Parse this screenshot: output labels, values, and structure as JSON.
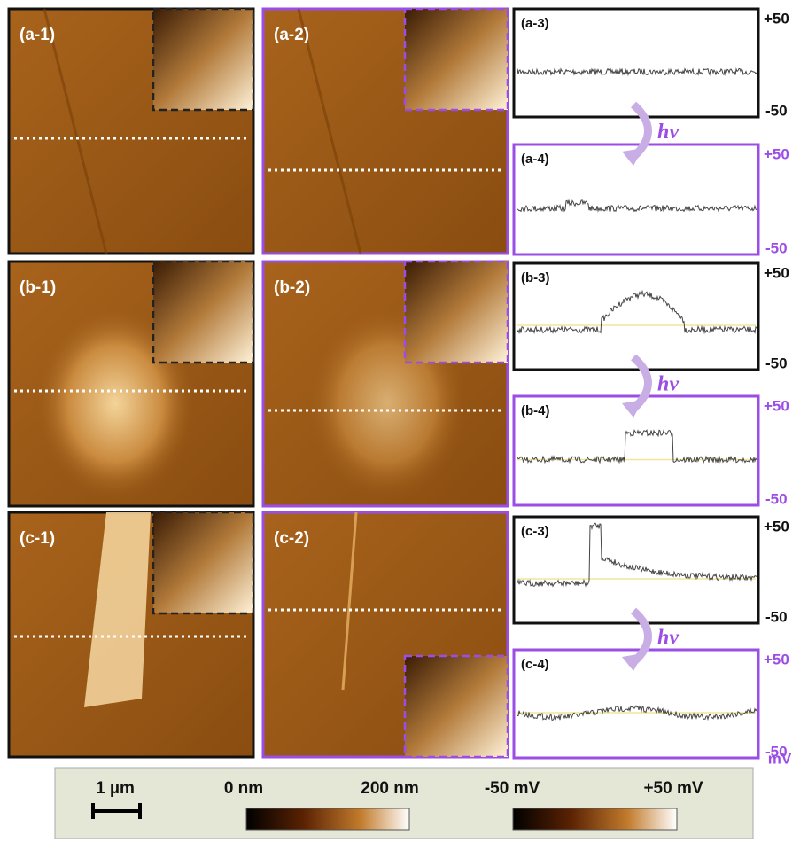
{
  "images": [
    "(a-1)",
    "(a-2)",
    "(b-1)",
    "(b-2)",
    "(c-1)",
    "(c-2)"
  ],
  "profiles": [
    {
      "label": "(a-3)",
      "top": "+50",
      "bottom": "-50"
    },
    {
      "label": "(a-4)",
      "top": "+50",
      "bottom": "-50"
    },
    {
      "label": "(b-3)",
      "top": "+50",
      "bottom": "-50"
    },
    {
      "label": "(b-4)",
      "top": "+50",
      "bottom": "-50"
    },
    {
      "label": "(c-3)",
      "top": "+50",
      "bottom": "-50"
    },
    {
      "label": "(c-4)",
      "top": "+50",
      "bottom": "-50"
    }
  ],
  "illumination_labels": [
    "hν",
    "hν",
    "hν"
  ],
  "unit": "mV",
  "legend": {
    "scale_bar": "1 µm",
    "height_min": "0 nm",
    "height_max": "200 nm",
    "potential_min": "-50 mV",
    "potential_max": "+50 mV"
  }
}
